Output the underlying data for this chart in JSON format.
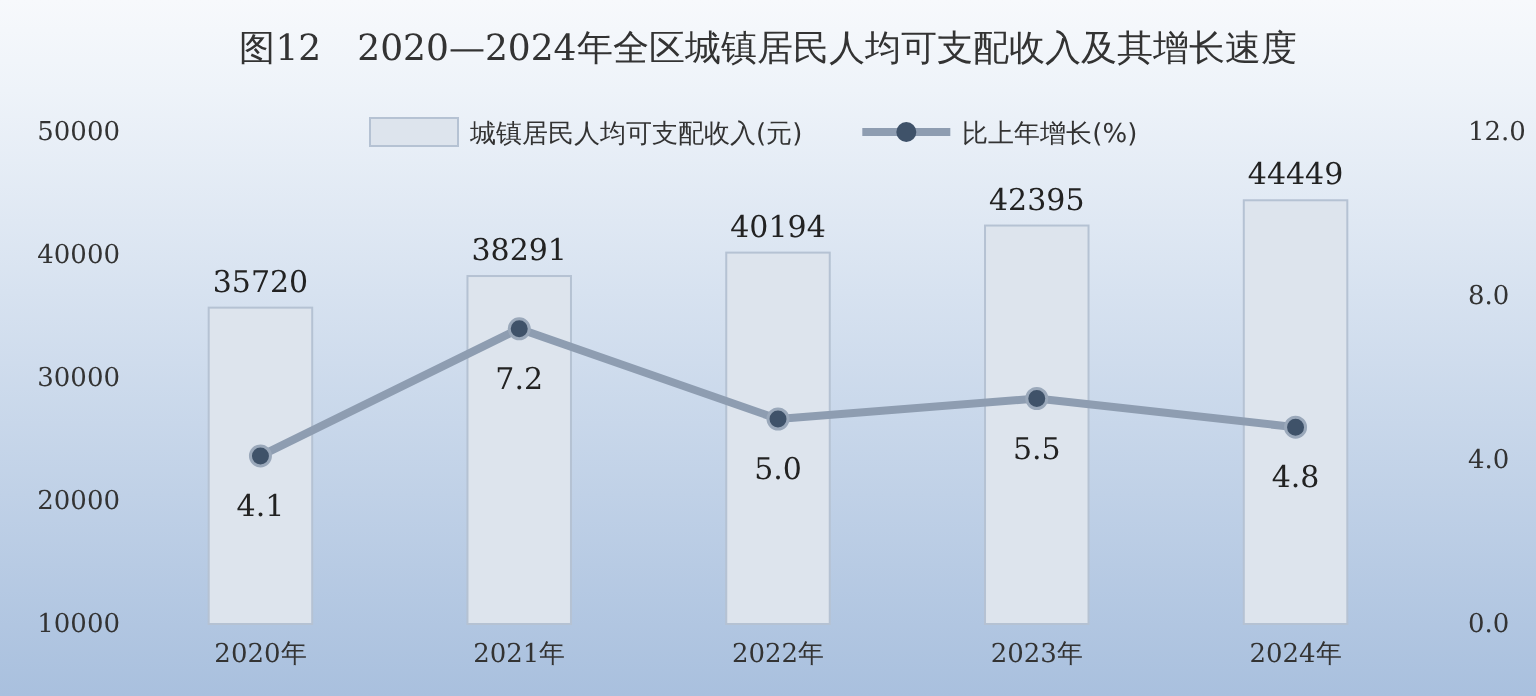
{
  "chart_data": {
    "type": "bar",
    "title": "图12　2020—2024年全区城镇居民人均可支配收入及其增长速度",
    "categories": [
      "2020年",
      "2021年",
      "2022年",
      "2023年",
      "2024年"
    ],
    "series": [
      {
        "name": "城镇居民人均可支配收入(元)",
        "color": "#dde4ed",
        "values": [
          35720,
          38291,
          40194,
          42395,
          44449
        ],
        "value_labels": [
          "35720",
          "38291",
          "40194",
          "42395",
          "44449"
        ]
      },
      {
        "name": "比上年增长(%)",
        "type": "line",
        "axis": "y2",
        "color": "#8e9db1",
        "marker": "circle",
        "values": [
          4.1,
          7.2,
          5.0,
          5.5,
          4.8
        ],
        "value_labels": [
          "4.1",
          "7.2",
          "5.0",
          "5.5",
          "4.8"
        ]
      }
    ],
    "ylim": [
      10000,
      50000
    ],
    "yticks": [
      10000,
      20000,
      30000,
      40000,
      50000
    ],
    "y2lim": [
      0,
      12
    ],
    "y2ticks": [
      {
        "value": 0,
        "label": "0.0"
      },
      {
        "value": 4,
        "label": "4.0"
      },
      {
        "value": 8,
        "label": "8.0"
      },
      {
        "value": 12,
        "label": "12.0"
      }
    ],
    "grid": false,
    "legend": "top"
  }
}
